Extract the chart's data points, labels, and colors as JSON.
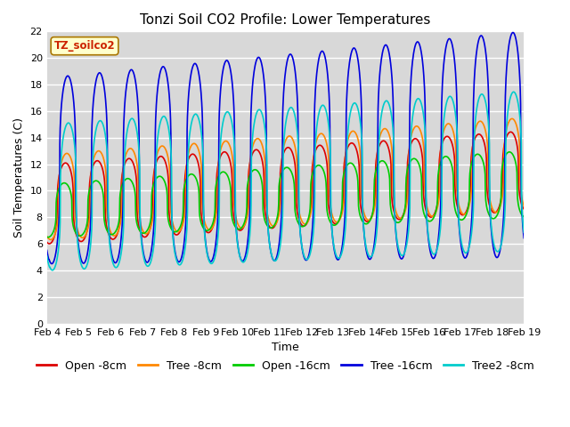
{
  "title": "Tonzi Soil CO2 Profile: Lower Temperatures",
  "xlabel": "Time",
  "ylabel": "Soil Temperatures (C)",
  "watermark": "TZ_soilco2",
  "ylim": [
    0,
    22
  ],
  "x_tick_labels": [
    "Feb 4",
    "Feb 5",
    "Feb 6",
    "Feb 7",
    "Feb 8",
    "Feb 9",
    "Feb 10",
    "Feb 11",
    "Feb 12",
    "Feb 13",
    "Feb 14",
    "Feb 15",
    "Feb 16",
    "Feb 17",
    "Feb 18",
    "Feb 19"
  ],
  "series": [
    {
      "label": "Open -8cm",
      "color": "#dd0000",
      "lw": 1.2
    },
    {
      "label": "Tree -8cm",
      "color": "#ff8800",
      "lw": 1.2
    },
    {
      "label": "Open -16cm",
      "color": "#00cc00",
      "lw": 1.2
    },
    {
      "label": "Tree -16cm",
      "color": "#0000dd",
      "lw": 1.2
    },
    {
      "label": "Tree2 -8cm",
      "color": "#00cccc",
      "lw": 1.2
    }
  ],
  "background_color": "#d8d8d8",
  "grid_color": "#ffffff",
  "title_fontsize": 11,
  "axis_label_fontsize": 9,
  "tick_fontsize": 8,
  "legend_fontsize": 9,
  "figsize": [
    6.4,
    4.8
  ],
  "dpi": 100
}
